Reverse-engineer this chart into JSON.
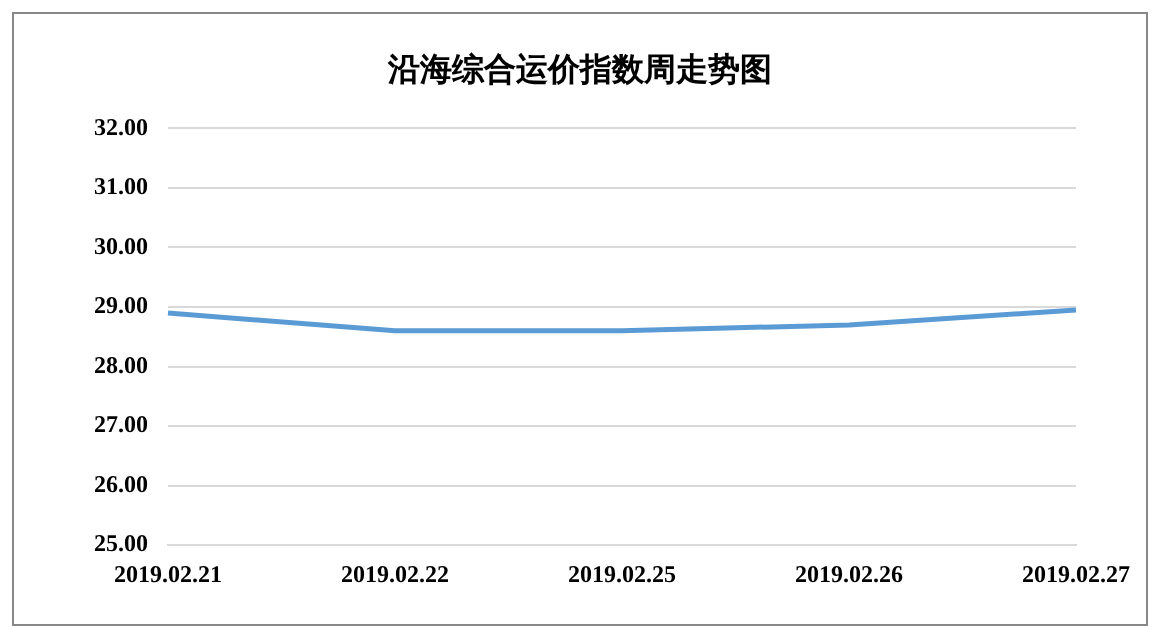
{
  "chart_data": {
    "type": "line",
    "title": "沿海综合运价指数周走势图",
    "categories": [
      "2019.02.21",
      "2019.02.22",
      "2019.02.25",
      "2019.02.26",
      "2019.02.27"
    ],
    "series": [
      {
        "color": "#5b9bd5",
        "values": [
          28.9,
          28.6,
          28.6,
          28.7,
          28.95
        ]
      }
    ],
    "ylim": [
      25,
      32
    ],
    "yticks": [
      {
        "value": 25,
        "label": "25.00"
      },
      {
        "value": 26,
        "label": "26.00"
      },
      {
        "value": 27,
        "label": "27.00"
      },
      {
        "value": 28,
        "label": "28.00"
      },
      {
        "value": 29,
        "label": "29.00"
      },
      {
        "value": 30,
        "label": "30.00"
      },
      {
        "value": 31,
        "label": "31.00"
      },
      {
        "value": 32,
        "label": "32.00"
      }
    ],
    "grid": "y",
    "legend": false,
    "marker": "none",
    "line_style": "solid"
  }
}
